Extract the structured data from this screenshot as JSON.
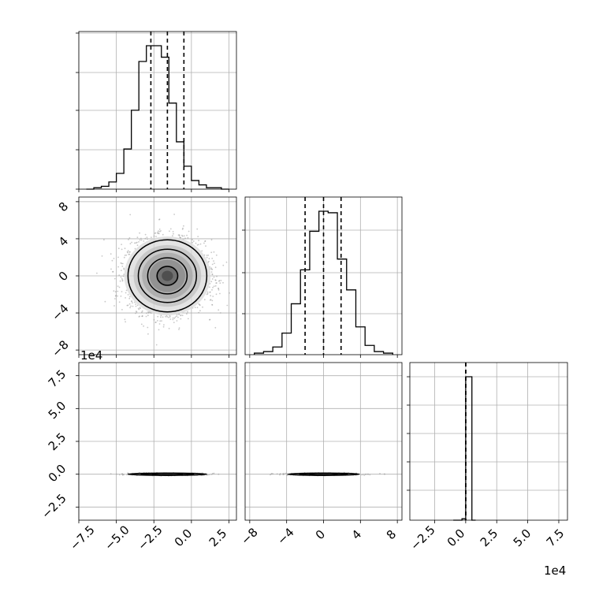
{
  "chart_data": [
    {
      "panel": "hist-x",
      "type": "bar",
      "style": "step",
      "xlim": [
        -7.5,
        3.0
      ],
      "bin_edges": [
        -7.0,
        -6.5,
        -6.0,
        -5.5,
        -5.0,
        -4.5,
        -4.0,
        -3.5,
        -3.0,
        -2.5,
        -2.0,
        -1.5,
        -1.0,
        -0.5,
        0.0,
        0.5,
        1.0,
        1.5,
        2.0,
        2.5
      ],
      "values": [
        0,
        1,
        2,
        5,
        11,
        28,
        55,
        89,
        100,
        100,
        92,
        60,
        33,
        16,
        6,
        3,
        1,
        1,
        0
      ],
      "quantiles": [
        -2.7,
        -1.6,
        -0.5
      ],
      "grid": true
    },
    {
      "panel": "hist-y",
      "type": "bar",
      "style": "step",
      "xlim": [
        -8.5,
        8.5
      ],
      "bin_edges": [
        -7.5,
        -6.5,
        -5.5,
        -4.5,
        -3.5,
        -2.5,
        -1.5,
        -0.5,
        0.5,
        1.5,
        2.5,
        3.5,
        4.5,
        5.5,
        6.5,
        7.5
      ],
      "values": [
        1,
        2,
        5,
        14,
        33,
        55,
        80,
        93,
        92,
        62,
        42,
        18,
        6,
        2,
        1
      ],
      "quantiles": [
        -2.0,
        0.0,
        1.9
      ],
      "grid": true
    },
    {
      "panel": "hist-z",
      "type": "bar",
      "style": "step",
      "xlim": [
        -4.5,
        8.2
      ],
      "bin_edges": [
        -1.0,
        -0.3,
        0.0,
        0.5,
        0.8
      ],
      "values": [
        0,
        1,
        100,
        0
      ],
      "quantiles": [
        0.0,
        0.0,
        0.0
      ],
      "offset": "1e4",
      "grid": true
    },
    {
      "panel": "x-y",
      "type": "heatmap",
      "style": "2d-histogram with contours",
      "xlim": [
        -7.5,
        3.0
      ],
      "ylim": [
        -8.5,
        8.5
      ],
      "center": [
        -1.6,
        0.0
      ],
      "spread": [
        1.25,
        1.85
      ],
      "contour_levels": [
        0.12,
        0.33,
        0.6,
        0.86
      ],
      "grid": true
    },
    {
      "panel": "x-z",
      "type": "heatmap",
      "style": "2d-histogram with contours",
      "xlim": [
        -7.5,
        3.0
      ],
      "ylim": [
        -3.5,
        8.5
      ],
      "center": [
        -1.6,
        0.0
      ],
      "spread": [
        1.25,
        0.04
      ],
      "ylabel_offset": "1e4",
      "grid": true
    },
    {
      "panel": "y-z",
      "type": "heatmap",
      "style": "2d-histogram with contours",
      "xlim": [
        -8.5,
        8.5
      ],
      "ylim": [
        -3.5,
        8.5
      ],
      "center": [
        0.0,
        0.0
      ],
      "spread": [
        1.85,
        0.04
      ],
      "grid": true
    }
  ],
  "axes": {
    "xy_y_ticks": [
      "8",
      "4",
      "0",
      "−4",
      "−8"
    ],
    "xz_y_ticks": [
      "7.5",
      "5.0",
      "2.5",
      "0.0",
      "−2.5"
    ],
    "x_ticks": [
      "−7.5",
      "−5.0",
      "−2.5",
      "0.0",
      "2.5"
    ],
    "y_ticks": [
      "−8",
      "−4",
      "0",
      "4",
      "8"
    ],
    "z_ticks": [
      "−2.5",
      "0.0",
      "2.5",
      "5.0",
      "7.5"
    ],
    "y_offset_label": "1e4",
    "x_offset_label": "1e4"
  },
  "colors": {
    "line": "#000000",
    "grid": "#b0b0b0",
    "scatter": "#9a9a9a"
  }
}
